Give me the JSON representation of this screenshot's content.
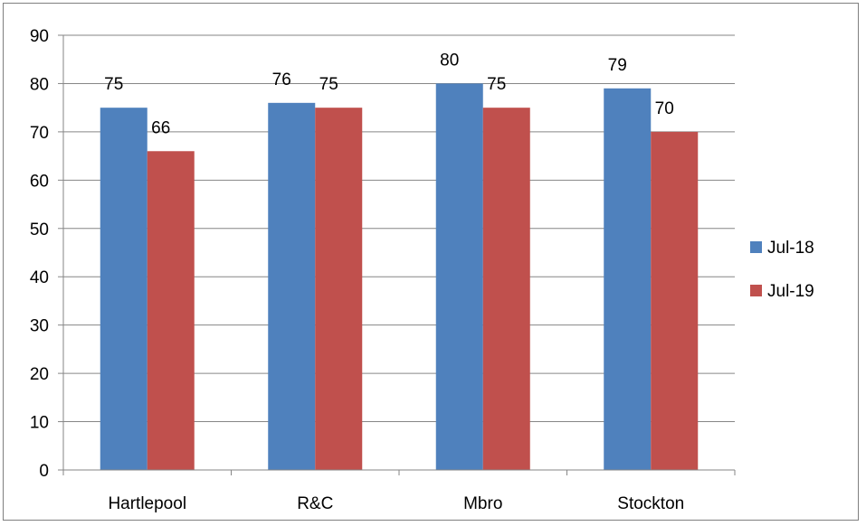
{
  "chart_data": {
    "type": "bar",
    "title": "",
    "xlabel": "",
    "ylabel": "",
    "categories": [
      "Hartlepool",
      "R&C",
      "Mbro",
      "Stockton"
    ],
    "series": [
      {
        "name": "Jul-18",
        "color": "#4f81bd",
        "values": [
          75,
          76,
          80,
          79
        ]
      },
      {
        "name": "Jul-19",
        "color": "#c0504d",
        "values": [
          66,
          75,
          75,
          70
        ]
      }
    ],
    "ylim": [
      0,
      90
    ],
    "yticks": [
      0,
      10,
      20,
      30,
      40,
      50,
      60,
      70,
      80,
      90
    ],
    "grid": true,
    "legend": "right",
    "data_labels": true
  }
}
